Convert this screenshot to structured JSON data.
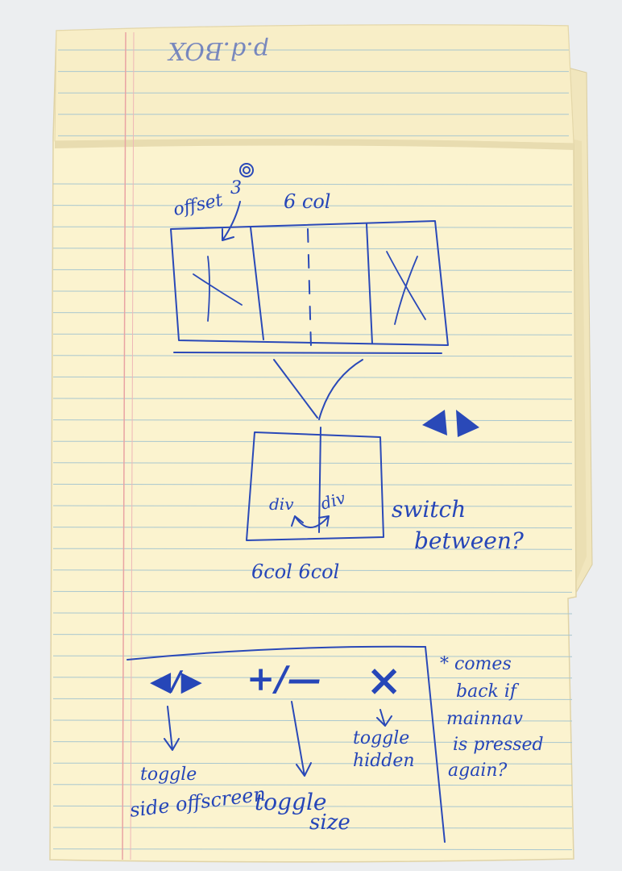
{
  "sketch": {
    "header_note": "p.d.BOX",
    "wireframe_top": {
      "offset_label": "offset",
      "offset_number": "3",
      "columns_label": "6 col"
    },
    "wireframe_bottom": {
      "left_div": "div",
      "right_div": "div",
      "bottom_labels": "6col 6col",
      "side_note_line1": "switch",
      "side_note_line2": "between?"
    },
    "controls_bar": {
      "arrows": "◀/▶",
      "plus_minus": "+/—",
      "close": "×",
      "toggle_offscreen_line1": "toggle",
      "toggle_offscreen_line2": "side offscreen",
      "toggle_size_line1": "toggle",
      "toggle_size_line2": "size",
      "toggle_hidden_line1": "toggle",
      "toggle_hidden_line2": "hidden"
    },
    "margin_note": {
      "line1": "* comes",
      "line2": "back if",
      "line3": "mainnav",
      "line4": "is pressed",
      "line5": "again?"
    }
  },
  "colors": {
    "paper": "#fbf3cf",
    "ruled_line": "#a9c7cf",
    "margin_line": "#e9a3a3",
    "ink": "#2a49b8",
    "background": "#eceef0"
  }
}
